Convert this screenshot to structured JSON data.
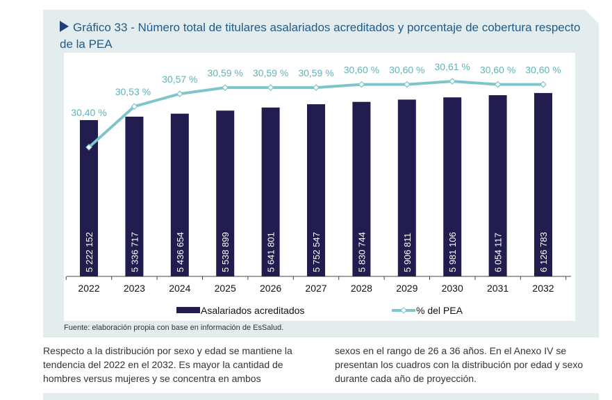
{
  "title": "Gráfico 33 - Número total de titulares asalariados acreditados y porcentaje de cobertura respecto de la PEA",
  "source": "Fuente: elaboración propia con base en información de EsSalud.",
  "body_left": "Respecto a la distribución por sexo y edad se mantiene la tendencia del 2022 en el 2032. Es mayor la cantidad de hombres versus mujeres y se concentra en ambos",
  "body_right": "sexos en el rango de 26 a 36 años. En el Anexo IV se presentan los cuadros con la distribución por edad y sexo durante cada año de proyección.",
  "chart_data": {
    "type": "bar+line",
    "categories": [
      "2022",
      "2023",
      "2024",
      "2025",
      "2026",
      "2027",
      "2028",
      "2029",
      "2030",
      "2031",
      "2032"
    ],
    "series": [
      {
        "name": "Asalariados acreditados",
        "type": "bar",
        "color": "#221d4f",
        "values": [
          5222152,
          5336717,
          5436654,
          5538899,
          5641801,
          5752547,
          5830744,
          5906811,
          5981106,
          6054117,
          6126783
        ],
        "labels": [
          "5 222 152",
          "5 336 717",
          "5 436 654",
          "5 538 899",
          "5 641 801",
          "5 752 547",
          "5 830 744",
          "5 906 811",
          "5 981 106",
          "6 054 117",
          "6 126 783"
        ]
      },
      {
        "name": "% del PEA",
        "type": "line",
        "color": "#7ec5c9",
        "values": [
          30.4,
          30.53,
          30.57,
          30.59,
          30.59,
          30.59,
          30.6,
          30.6,
          30.61,
          30.6,
          30.6
        ],
        "labels": [
          "30,40 %",
          "30,53 %",
          "30,57 %",
          "30,59 %",
          "30,59 %",
          "30,59 %",
          "30,60 %",
          "30,60 %",
          "30,61 %",
          "30,60 %",
          "30,60 %"
        ]
      }
    ],
    "legend": "bottom",
    "grid": false
  }
}
